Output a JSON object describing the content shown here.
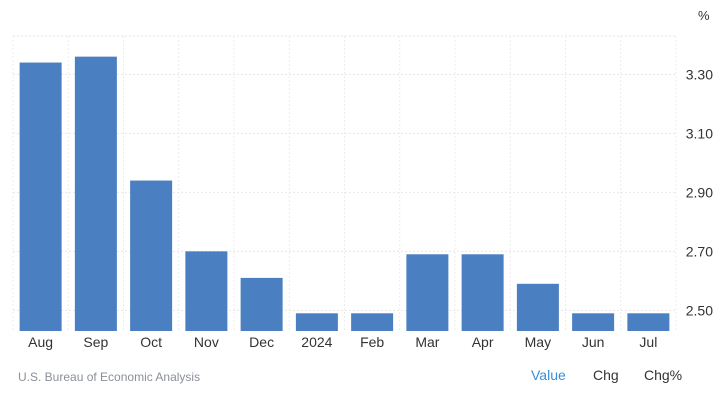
{
  "chart_data": {
    "type": "bar",
    "unit": "%",
    "categories": [
      "Aug",
      "Sep",
      "Oct",
      "Nov",
      "Dec",
      "2024",
      "Feb",
      "Mar",
      "Apr",
      "May",
      "Jun",
      "Jul"
    ],
    "values": [
      3.34,
      3.36,
      2.94,
      2.7,
      2.61,
      2.49,
      2.49,
      2.69,
      2.69,
      2.59,
      2.49,
      2.49
    ],
    "y_ticks": [
      "2.50",
      "2.70",
      "2.90",
      "3.10",
      "3.30"
    ],
    "ylim": [
      2.43,
      3.43
    ],
    "grid": true,
    "color": "#4a7fc1"
  },
  "footer": {
    "source": "U.S. Bureau of Economic Analysis",
    "tabs": [
      {
        "label": "Value",
        "active": true
      },
      {
        "label": "Chg",
        "active": false
      },
      {
        "label": "Chg%",
        "active": false
      }
    ],
    "active_color": "#3b8ed6"
  }
}
